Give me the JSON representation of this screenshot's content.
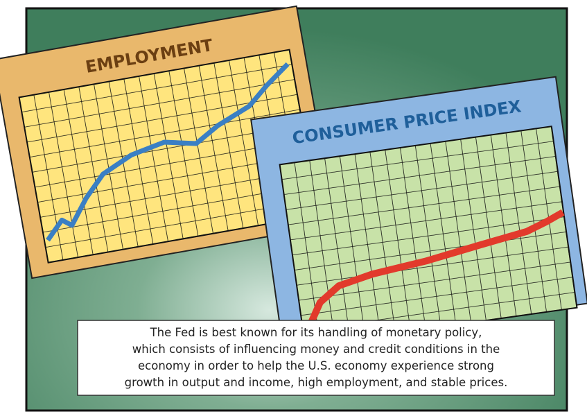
{
  "cards": [
    {
      "title": "EMPLOYMENT"
    },
    {
      "title": "CONSUMER PRICE INDEX"
    }
  ],
  "caption": {
    "lines": [
      "The Fed is best known for its handling of monetary policy,",
      "which consists of influencing money and credit conditions in the",
      "economy in order to help the U.S. economy experience strong",
      "growth in output and income, high employment, and stable prices."
    ]
  }
}
